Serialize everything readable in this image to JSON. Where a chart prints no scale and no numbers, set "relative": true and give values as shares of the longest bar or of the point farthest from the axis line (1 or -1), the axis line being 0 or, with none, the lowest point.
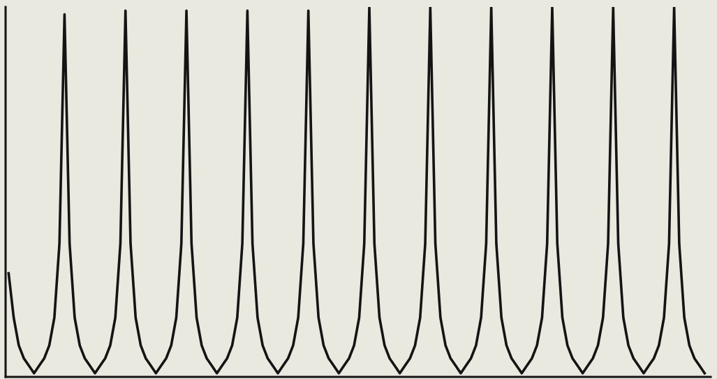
{
  "chart_data": {
    "type": "line",
    "relative": true,
    "grid": false,
    "legend": false,
    "marker": "none",
    "line_style": "solid",
    "categories": [
      null,
      null,
      null,
      null,
      null,
      null,
      null,
      null,
      null,
      null,
      null,
      null,
      null,
      null,
      null,
      null,
      null,
      null,
      null,
      null,
      null,
      null,
      null,
      null,
      null,
      null,
      null,
      null,
      null,
      null,
      null,
      null,
      null,
      null,
      null,
      null,
      null,
      null,
      null,
      null,
      null,
      null,
      null,
      null,
      null,
      null,
      null,
      null,
      null,
      null,
      null,
      null,
      null,
      null,
      null,
      null,
      null,
      null,
      null,
      null,
      null,
      null,
      null,
      null,
      null,
      null,
      null,
      null,
      null,
      null,
      null,
      null,
      null,
      null,
      null,
      null,
      null,
      null,
      null,
      null,
      null,
      null,
      null,
      null,
      null,
      null,
      null,
      null,
      null,
      null,
      null,
      null,
      null,
      null,
      null,
      null,
      null,
      null,
      null,
      null,
      null,
      null,
      null,
      null,
      null,
      null,
      null,
      null,
      null,
      null,
      null,
      null,
      null,
      null,
      null,
      null,
      null,
      null,
      null,
      null,
      null,
      null,
      null,
      null,
      null,
      null,
      null,
      null,
      null,
      null,
      null,
      null,
      null,
      null,
      null,
      null,
      null,
      null
    ],
    "series": [
      {
        "color": "#141414",
        "values": [
          0.28,
          0.16,
          0.085,
          0.05,
          0.03,
          0.01,
          0.03,
          0.05,
          0.085,
          0.16,
          0.36,
          0.98,
          0.36,
          0.16,
          0.085,
          0.05,
          0.03,
          0.01,
          0.03,
          0.05,
          0.085,
          0.16,
          0.36,
          0.99,
          0.36,
          0.16,
          0.085,
          0.05,
          0.03,
          0.01,
          0.03,
          0.05,
          0.085,
          0.16,
          0.36,
          0.99,
          0.36,
          0.16,
          0.085,
          0.05,
          0.03,
          0.01,
          0.03,
          0.05,
          0.085,
          0.16,
          0.36,
          0.99,
          0.36,
          0.16,
          0.085,
          0.05,
          0.03,
          0.01,
          0.03,
          0.05,
          0.085,
          0.16,
          0.36,
          0.99,
          0.36,
          0.16,
          0.085,
          0.05,
          0.03,
          0.01,
          0.03,
          0.05,
          0.085,
          0.16,
          0.36,
          1.0,
          0.36,
          0.16,
          0.085,
          0.05,
          0.03,
          0.01,
          0.03,
          0.05,
          0.085,
          0.16,
          0.36,
          1.0,
          0.36,
          0.16,
          0.085,
          0.05,
          0.03,
          0.01,
          0.03,
          0.05,
          0.085,
          0.16,
          0.36,
          1.0,
          0.36,
          0.16,
          0.085,
          0.05,
          0.03,
          0.01,
          0.03,
          0.05,
          0.085,
          0.16,
          0.36,
          1.0,
          0.36,
          0.16,
          0.085,
          0.05,
          0.03,
          0.01,
          0.03,
          0.05,
          0.085,
          0.16,
          0.36,
          1.0,
          0.36,
          0.16,
          0.085,
          0.05,
          0.03,
          0.01,
          0.03,
          0.05,
          0.085,
          0.16,
          0.36,
          1.0,
          0.36,
          0.16,
          0.085,
          0.05,
          0.03,
          0.01
        ]
      }
    ]
  }
}
